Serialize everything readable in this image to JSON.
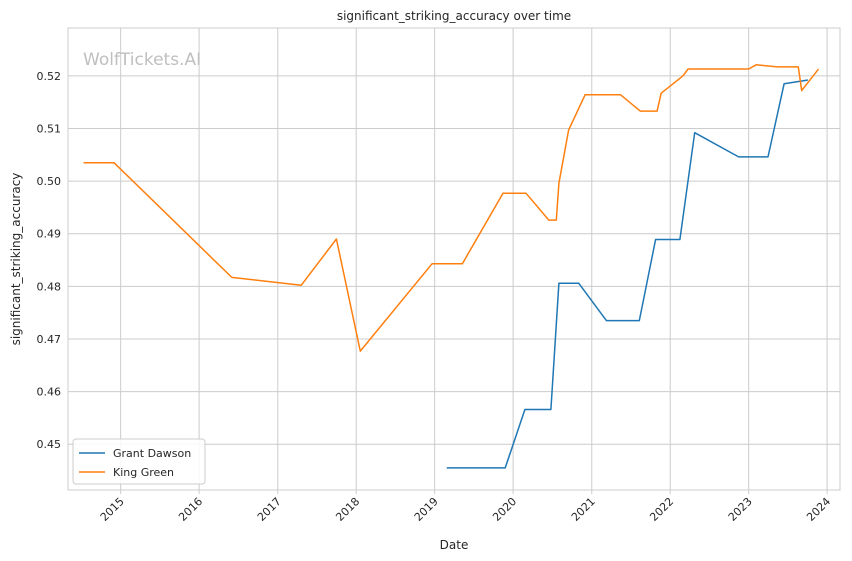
{
  "chart_data": {
    "type": "line",
    "title": "significant_striking_accuracy over time",
    "xlabel": "Date",
    "ylabel": "significant_striking_accuracy",
    "watermark": "WolfTickets.AI",
    "x_ticks": [
      "2015",
      "2016",
      "2017",
      "2018",
      "2019",
      "2020",
      "2021",
      "2022",
      "2023",
      "2024"
    ],
    "y_ticks": [
      "0.45",
      "0.46",
      "0.47",
      "0.48",
      "0.49",
      "0.50",
      "0.51",
      "0.52"
    ],
    "xlim": [
      "2014-05-01",
      "2024-03-01"
    ],
    "ylim": [
      0.4413,
      0.5291
    ],
    "grid": true,
    "legend_position": "lower-left",
    "series": [
      {
        "name": "Grant Dawson",
        "color": "#1f77b4",
        "points": [
          [
            "2019-03-01",
            0.4455
          ],
          [
            "2019-11-25",
            0.4455
          ],
          [
            "2020-02-25",
            0.4566
          ],
          [
            "2020-06-25",
            0.4566
          ],
          [
            "2020-08-01",
            0.4806
          ],
          [
            "2020-11-01",
            0.4806
          ],
          [
            "2021-03-10",
            0.4735
          ],
          [
            "2021-08-10",
            0.4735
          ],
          [
            "2021-10-25",
            0.4889
          ],
          [
            "2022-02-15",
            0.4889
          ],
          [
            "2022-04-25",
            0.5092
          ],
          [
            "2022-11-15",
            0.5046
          ],
          [
            "2023-04-01",
            0.5046
          ],
          [
            "2023-06-15",
            0.5185
          ],
          [
            "2023-10-01",
            0.5192
          ]
        ]
      },
      {
        "name": "King Green",
        "color": "#ff7f0e",
        "points": [
          [
            "2014-07-15",
            0.5035
          ],
          [
            "2014-12-01",
            0.5035
          ],
          [
            "2016-06-01",
            0.4817
          ],
          [
            "2017-04-20",
            0.4802
          ],
          [
            "2017-10-01",
            0.489
          ],
          [
            "2018-01-20",
            0.4677
          ],
          [
            "2018-12-20",
            0.4843
          ],
          [
            "2019-05-10",
            0.4843
          ],
          [
            "2019-11-15",
            0.4977
          ],
          [
            "2020-03-01",
            0.4977
          ],
          [
            "2020-06-15",
            0.4926
          ],
          [
            "2020-07-20",
            0.4926
          ],
          [
            "2020-08-01",
            0.4996
          ],
          [
            "2020-09-15",
            0.5097
          ],
          [
            "2020-12-01",
            0.5164
          ],
          [
            "2021-05-15",
            0.5164
          ],
          [
            "2021-08-15",
            0.5133
          ],
          [
            "2021-11-01",
            0.5133
          ],
          [
            "2021-11-20",
            0.5167
          ],
          [
            "2022-03-01",
            0.52
          ],
          [
            "2022-03-25",
            0.5213
          ],
          [
            "2023-01-01",
            0.5213
          ],
          [
            "2023-02-05",
            0.5221
          ],
          [
            "2023-05-15",
            0.5217
          ],
          [
            "2023-08-20",
            0.5217
          ],
          [
            "2023-09-05",
            0.5172
          ],
          [
            "2023-11-20",
            0.5212
          ]
        ]
      }
    ]
  }
}
